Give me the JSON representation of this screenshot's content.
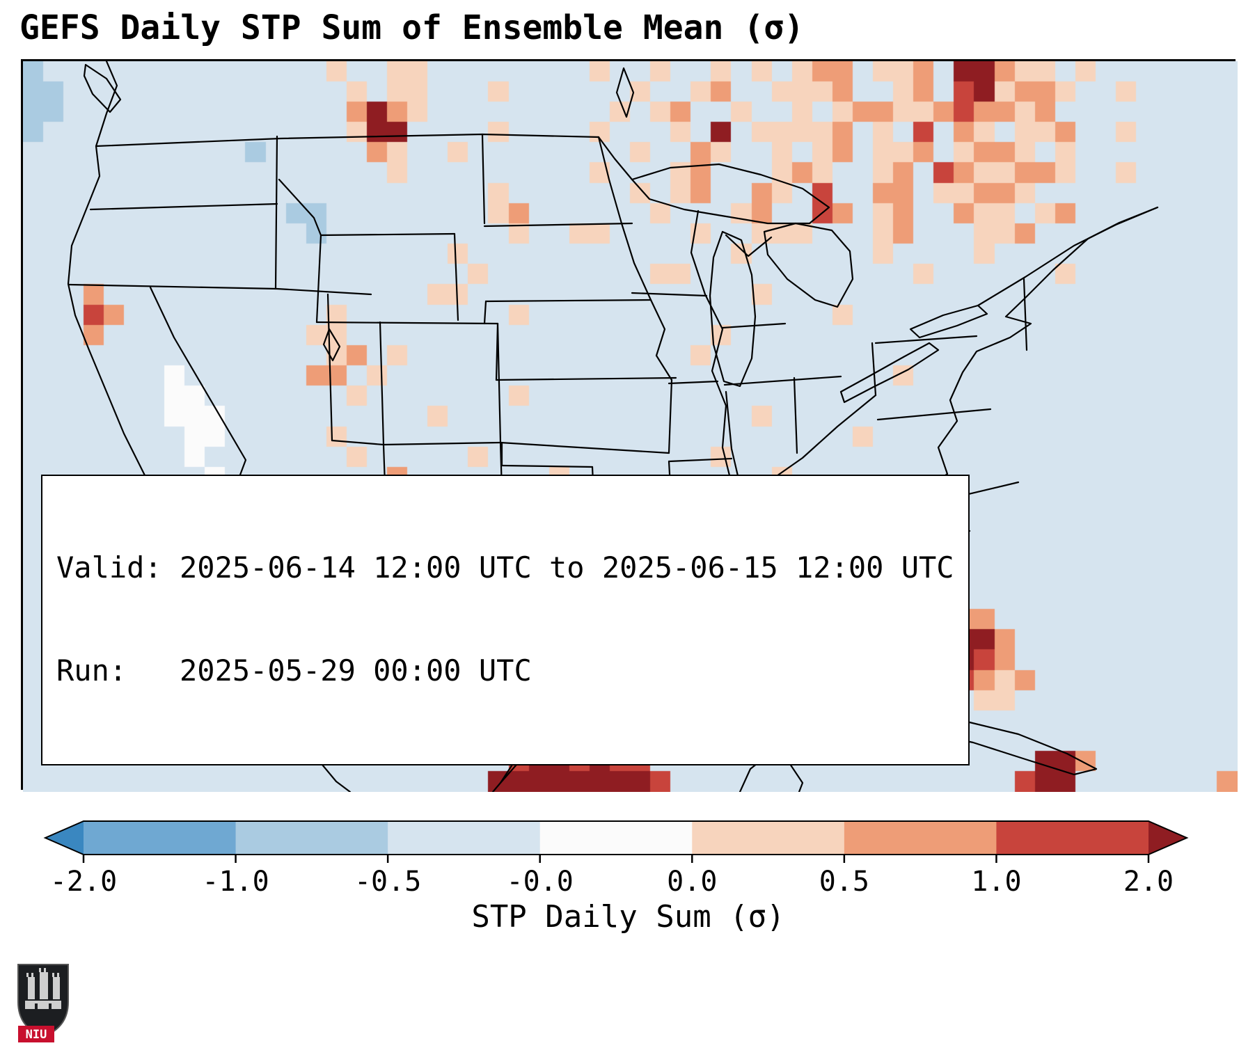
{
  "title": "GEFS Daily STP Sum of Ensemble Mean (σ)",
  "annotation": {
    "line1": "Valid: 2025-06-14 12:00 UTC to 2025-06-15 12:00 UTC",
    "line2": "Run:   2025-05-29 00:00 UTC"
  },
  "logo": {
    "label": "NIU"
  },
  "chart_data": {
    "type": "heatmap",
    "title": "GEFS Daily STP Sum of Ensemble Mean (σ)",
    "region": "Continental United States with southern Canada, Mexico and Cuba",
    "colorbar": {
      "label": "STP Daily Sum (σ)",
      "tick_labels": [
        "-2.0",
        "-1.0",
        "-0.5",
        "-0.0",
        "0.0",
        "0.5",
        "1.0",
        "2.0"
      ],
      "boundaries": [
        -2.0,
        -1.0,
        -0.5,
        -0.0,
        0.0,
        0.5,
        1.0,
        2.0
      ],
      "under_color": "#3a87c0",
      "over_color": "#8f1d22",
      "segment_colors": [
        "#6fa8d2",
        "#aacbe1",
        "#d6e4ef",
        "#fbfbfb",
        "#f7d4bd",
        "#ee9d77",
        "#c8443c"
      ]
    },
    "grid": {
      "cols": 60,
      "rows_count": 36,
      "value_bins_sigma": {
        ".": -0.25,
        "B": -0.75,
        "C": -1.5,
        "w": 0.0,
        "a": 0.25,
        "b": 0.75,
        "c": 1.5,
        "d": 2.5
      },
      "palette": {
        ".": "#d6e4ef",
        "B": "#aacbe1",
        "C": "#7fb3d8",
        "w": "#fbfbfb",
        "a": "#f7d4bd",
        "b": "#ee9d77",
        "c": "#c8443c",
        "d": "#8f1d22"
      },
      "rows": [
        [
          "B.............",
          ".a..aa",
          "........",
          "a.",
          ".a..a.a.",
          "abb.aab.",
          "dd",
          "baa.a.",
          "......"
        ],
        [
          "BB............",
          "..a.aa",
          "...a....",
          "..",
          "a..ab..a",
          "aab..ab.",
          "cd",
          "abba..",
          "a....."
        ],
        [
          "BB............",
          "..bdba",
          "........",
          ".a",
          ".ab..a..",
          "a.abbaab",
          "cb",
          "bab...",
          "......"
        ],
        [
          "B.............",
          "..add.",
          "...a....",
          "a.",
          "..a.d.aa",
          "aab.a.c.",
          "ba",
          ".aab..",
          "a....."
        ],
        [
          "...........B..",
          "...ba.",
          ".a......",
          "..",
          "a..ba..a",
          ".ab.aab.",
          "ab",
          "ba.a..",
          "......"
        ],
        [
          "..............",
          "....a.",
          "........",
          "a.",
          "..ab...a",
          "ba..ab.c",
          "ba",
          "abba..",
          "a....."
        ],
        [
          "..............",
          "......",
          "...a....",
          "..",
          "a.ab..ba",
          ".c..bb.a",
          "ab",
          "ba....",
          "......"
        ],
        [
          ".............B",
          "B.....",
          "...ab...",
          "..",
          ".a...ab.",
          ".cb.ab..",
          "ba",
          "a.ab..",
          "......"
        ],
        [
          "..............",
          "B.....",
          "....a..a",
          "a.",
          "...a..aa",
          "a...ab..",
          ".a",
          "ab....",
          "......"
        ],
        [
          "..............",
          "......",
          ".a......",
          "..",
          ".....a..",
          "....a...",
          ".a",
          "......",
          "......"
        ],
        [
          "..............",
          "......",
          "..a.....",
          "..",
          ".aa.....",
          "......a.",
          "..",
          "...a..",
          "......"
        ],
        [
          "...b..........",
          "......",
          "aa......",
          "..",
          "......a.",
          "........",
          "..",
          "......",
          "......"
        ],
        [
          "...cb.........",
          ".a....",
          "....a...",
          "..",
          "........",
          "..a.....",
          "..",
          "......",
          "......"
        ],
        [
          "...b..........",
          "aa....",
          "........",
          "..",
          "....a...",
          "........",
          "..",
          "......",
          "......"
        ],
        [
          "..............",
          ".ab.a.",
          "........",
          "..",
          "...a....",
          "........",
          "..",
          "......",
          "......"
        ],
        [
          ".......w......",
          "bb.a..",
          "........",
          "..",
          "........",
          ".....a..",
          "..",
          "......",
          "......"
        ],
        [
          ".......ww.....",
          "..a...",
          "....a...",
          "..",
          "........",
          "........",
          "..",
          "......",
          "......"
        ],
        [
          ".......www....",
          "......",
          "a.......",
          "..",
          "......a.",
          "........",
          "..",
          "......",
          "......"
        ],
        [
          "........ww....",
          ".a....",
          "........",
          "..",
          "........",
          "...a....",
          "..",
          "......",
          "......"
        ],
        [
          "........w.....",
          "..a...",
          "..a.....",
          "..",
          "....a...",
          "........",
          "..",
          "......",
          "......"
        ],
        [
          ".........w....",
          "....b.",
          "......a.",
          "..",
          ".......a",
          "........",
          "..",
          "......",
          "......"
        ],
        [
          ".........w....",
          ".a....",
          "...aaa..",
          "..",
          ".a......",
          "........",
          "..",
          "......",
          "......"
        ],
        [
          "..........w...",
          "......",
          "...abba.",
          "..",
          ".....a..",
          "......a.",
          "..",
          "......",
          "......"
        ],
        [
          "..........w...",
          "b.....",
          "....ab.a",
          "..",
          "...a....",
          "a.......",
          "..",
          "......",
          "......"
        ],
        [
          "...........w..",
          "......",
          "...abcba",
          "a.",
          "......a.",
          ".a......",
          "..",
          "......",
          "......"
        ],
        [
          "...........c..",
          ".b....",
          "....a.a.",
          ".a",
          "aa....a.",
          ".a.a....",
          "..",
          "......",
          "......"
        ],
        [
          "............w.",
          ".cd...",
          "......a.",
          "ba",
          "cab.a.a.",
          "........",
          "..",
          "......",
          "......"
        ],
        [
          "............ww",
          "bdc...",
          "......ab",
          "ab",
          "bab.a...",
          "..a.....",
          "bb",
          "......",
          "......"
        ],
        [
          ".............w",
          "cdb...",
          ".......a",
          ".b",
          "ab..ba..",
          ".......b",
          "dd",
          "b.....",
          "......"
        ],
        [
          ".............w",
          ".c....",
          ".cb....a",
          "a.",
          "ba.ab...",
          ".......c",
          "dc",
          "b.....",
          "......"
        ],
        [
          "............w.",
          "......",
          ".b......",
          ".a",
          "ab.cc.a.",
          "........",
          "cb",
          "ab....",
          "......"
        ],
        [
          "...........ww.",
          "......",
          "..bb....",
          "..",
          ".b......",
          "...a....",
          ".a",
          "a.....",
          "......"
        ],
        [
          "...........w..",
          "......",
          ".aa.a...",
          "a.",
          "........",
          "........",
          "..",
          "......",
          "......"
        ],
        [
          "..............",
          "......",
          "....bccb",
          "cb",
          "b.......",
          "........",
          "..",
          "......",
          "......"
        ],
        [
          "..............",
          "......",
          "....cddc",
          "dc",
          "c.......",
          "........",
          "..",
          "..ddb.",
          "......"
        ],
        [
          "..............",
          "......",
          "...ddddd",
          "dd",
          "dc......",
          "........",
          "..",
          ".cdd..",
          ".....b"
        ]
      ]
    }
  }
}
